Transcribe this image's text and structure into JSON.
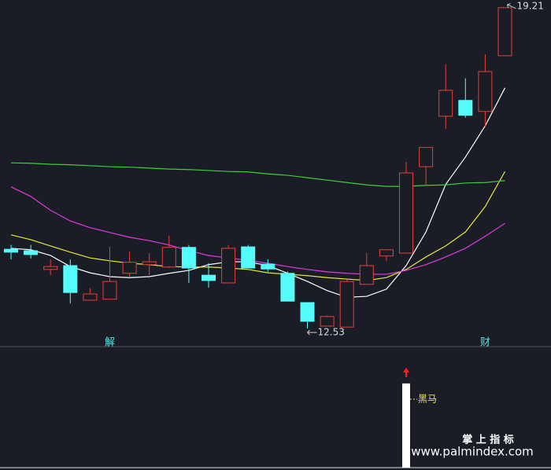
{
  "chart_data": {
    "type": "candlestick",
    "categories": [
      null,
      null,
      null,
      null,
      null,
      null,
      null,
      null,
      null,
      null,
      null,
      null,
      null,
      null,
      null,
      null,
      null,
      null,
      null,
      null,
      null,
      null,
      null,
      null,
      null,
      null
    ],
    "open": [
      14.18,
      14.15,
      13.76,
      13.84,
      13.12,
      13.14,
      13.68,
      13.86,
      13.81,
      14.22,
      13.64,
      13.48,
      14.23,
      13.87,
      13.68,
      13.07,
      12.58,
      12.56,
      13.45,
      14.04,
      14.1,
      15.9,
      16.95,
      17.28,
      17.05,
      18.21
    ],
    "high": [
      14.27,
      14.27,
      13.97,
      13.97,
      13.37,
      14.23,
      14.13,
      14.1,
      14.46,
      14.27,
      13.89,
      14.27,
      14.27,
      13.97,
      13.72,
      13.07,
      12.8,
      13.55,
      14.1,
      14.17,
      16.0,
      16.3,
      18.03,
      17.74,
      18.24,
      19.21
    ],
    "low": [
      13.97,
      13.99,
      13.64,
      13.05,
      13.12,
      13.14,
      13.61,
      13.64,
      13.79,
      13.48,
      13.38,
      13.48,
      13.79,
      13.71,
      13.1,
      12.53,
      12.58,
      12.56,
      13.45,
      13.94,
      14.1,
      15.51,
      16.69,
      16.92,
      16.72,
      18.21
    ],
    "close": [
      14.12,
      14.07,
      13.82,
      13.28,
      13.25,
      13.51,
      13.91,
      13.92,
      14.22,
      13.79,
      13.53,
      14.2,
      13.79,
      13.77,
      13.1,
      12.68,
      12.78,
      13.51,
      13.84,
      14.17,
      15.77,
      16.3,
      17.49,
      16.97,
      17.88,
      19.21
    ],
    "up_color": "#e8403a",
    "down_color": "#54fcfc",
    "ylim": [
      12.17,
      19.37
    ],
    "series": [
      {
        "color": "#ffffff",
        "values": [
          14.2,
          14.17,
          14.05,
          13.82,
          13.69,
          13.61,
          13.59,
          13.61,
          13.68,
          13.74,
          13.86,
          13.92,
          13.92,
          13.84,
          13.68,
          13.51,
          13.32,
          13.18,
          13.2,
          13.35,
          13.84,
          14.54,
          15.53,
          16.1,
          16.75,
          17.54
        ]
      },
      {
        "color": "#e8e83a",
        "values": [
          14.48,
          14.38,
          14.25,
          14.12,
          14.0,
          13.94,
          13.89,
          13.86,
          13.82,
          13.81,
          13.81,
          13.79,
          13.76,
          13.69,
          13.66,
          13.63,
          13.59,
          13.56,
          13.53,
          13.59,
          13.76,
          14.02,
          14.25,
          14.54,
          15.07,
          15.8
        ]
      },
      {
        "color": "#e03ae0",
        "values": [
          15.48,
          15.28,
          14.99,
          14.77,
          14.63,
          14.53,
          14.43,
          14.36,
          14.27,
          14.15,
          14.05,
          14.0,
          13.95,
          13.89,
          13.82,
          13.76,
          13.71,
          13.68,
          13.66,
          13.66,
          13.74,
          13.86,
          14.02,
          14.2,
          14.45,
          14.72
        ]
      },
      {
        "color": "#3ad03a",
        "values": [
          15.98,
          15.97,
          15.95,
          15.94,
          15.92,
          15.9,
          15.89,
          15.87,
          15.85,
          15.84,
          15.82,
          15.8,
          15.79,
          15.75,
          15.72,
          15.67,
          15.62,
          15.57,
          15.52,
          15.49,
          15.49,
          15.51,
          15.52,
          15.56,
          15.57,
          15.61
        ]
      }
    ],
    "annotations": [
      {
        "text": "解",
        "index": 5
      },
      {
        "text": "财",
        "index": 24
      }
    ],
    "indicator": {
      "type": "bar",
      "name": "黑马",
      "color": "#ffffff",
      "ylim": [
        0,
        1.4
      ],
      "values": [
        0,
        0,
        0,
        0,
        0,
        0,
        0,
        0,
        0,
        0,
        0,
        0,
        0,
        0,
        0,
        0,
        0,
        0,
        0,
        0,
        1,
        0,
        0,
        0,
        0,
        0
      ]
    }
  },
  "watermark": {
    "title": "掌 上 指 标",
    "url": "www.palmindex.com"
  }
}
